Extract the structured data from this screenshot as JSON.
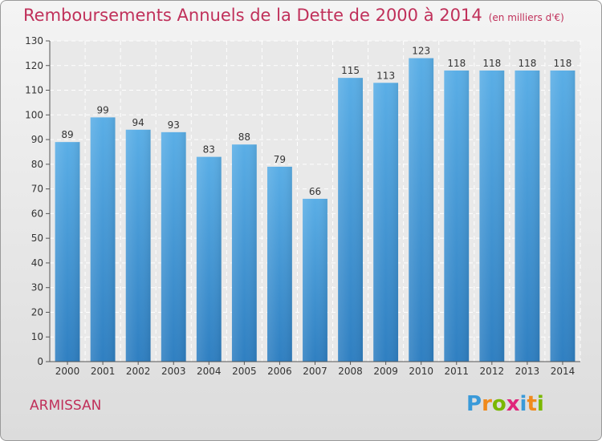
{
  "chart_data": {
    "type": "bar",
    "title": "Remboursements Annuels de la Dette de 2000 à 2014",
    "unit_note": "(en milliers d'€)",
    "categories": [
      "2000",
      "2001",
      "2002",
      "2003",
      "2004",
      "2005",
      "2006",
      "2007",
      "2008",
      "2009",
      "2010",
      "2011",
      "2012",
      "2013",
      "2014"
    ],
    "values": [
      89,
      99,
      94,
      93,
      83,
      88,
      79,
      66,
      115,
      113,
      123,
      118,
      118,
      118,
      118
    ],
    "ylim": [
      0,
      130
    ],
    "yticks": [
      0,
      10,
      20,
      30,
      40,
      50,
      60,
      70,
      80,
      90,
      100,
      110,
      120,
      130
    ],
    "xlabel": "",
    "ylabel": "",
    "grid": true
  },
  "commune": "ARMISSAN",
  "logo": {
    "letters": [
      "P",
      "r",
      "o",
      "x",
      "i",
      "t",
      "i"
    ],
    "colors": [
      "#3a9ad9",
      "#f08a1c",
      "#7ab800",
      "#e0267a",
      "#3a9ad9",
      "#f08a1c",
      "#7ab800"
    ]
  },
  "colors": {
    "bar_top": "#5aaee6",
    "bar_bottom": "#2f7fc1",
    "accent": "#c0305a"
  }
}
